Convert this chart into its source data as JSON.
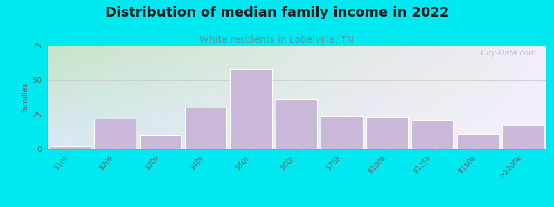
{
  "title": "Distribution of median family income in 2022",
  "subtitle": "White residents in Lobelville, TN",
  "categories": [
    "$10k",
    "$20k",
    "$30k",
    "$40k",
    "$50k",
    "$60k",
    "$75k",
    "$100k",
    "$125k",
    "$150k",
    ">$200k"
  ],
  "values": [
    2,
    22,
    10,
    30,
    58,
    36,
    24,
    23,
    21,
    11,
    17
  ],
  "bar_color": "#c9b8d8",
  "bar_edgecolor": "#ffffff",
  "ylabel": "families",
  "ylim": [
    0,
    75
  ],
  "yticks": [
    0,
    25,
    50,
    75
  ],
  "background_outer": "#00e8f0",
  "bg_top_left": "#c8e6c9",
  "bg_top_right": "#f0ece8",
  "bg_bottom_left": "#dce8f5",
  "bg_bottom_right": "#f5f0fa",
  "title_fontsize": 14,
  "subtitle_fontsize": 10,
  "subtitle_color": "#5a9aaa",
  "watermark_text": " City-Data.com",
  "watermark_color": "#b0bec5",
  "grid_color": "#cccccc",
  "tick_label_color": "#666666",
  "axis_color": "#999999"
}
